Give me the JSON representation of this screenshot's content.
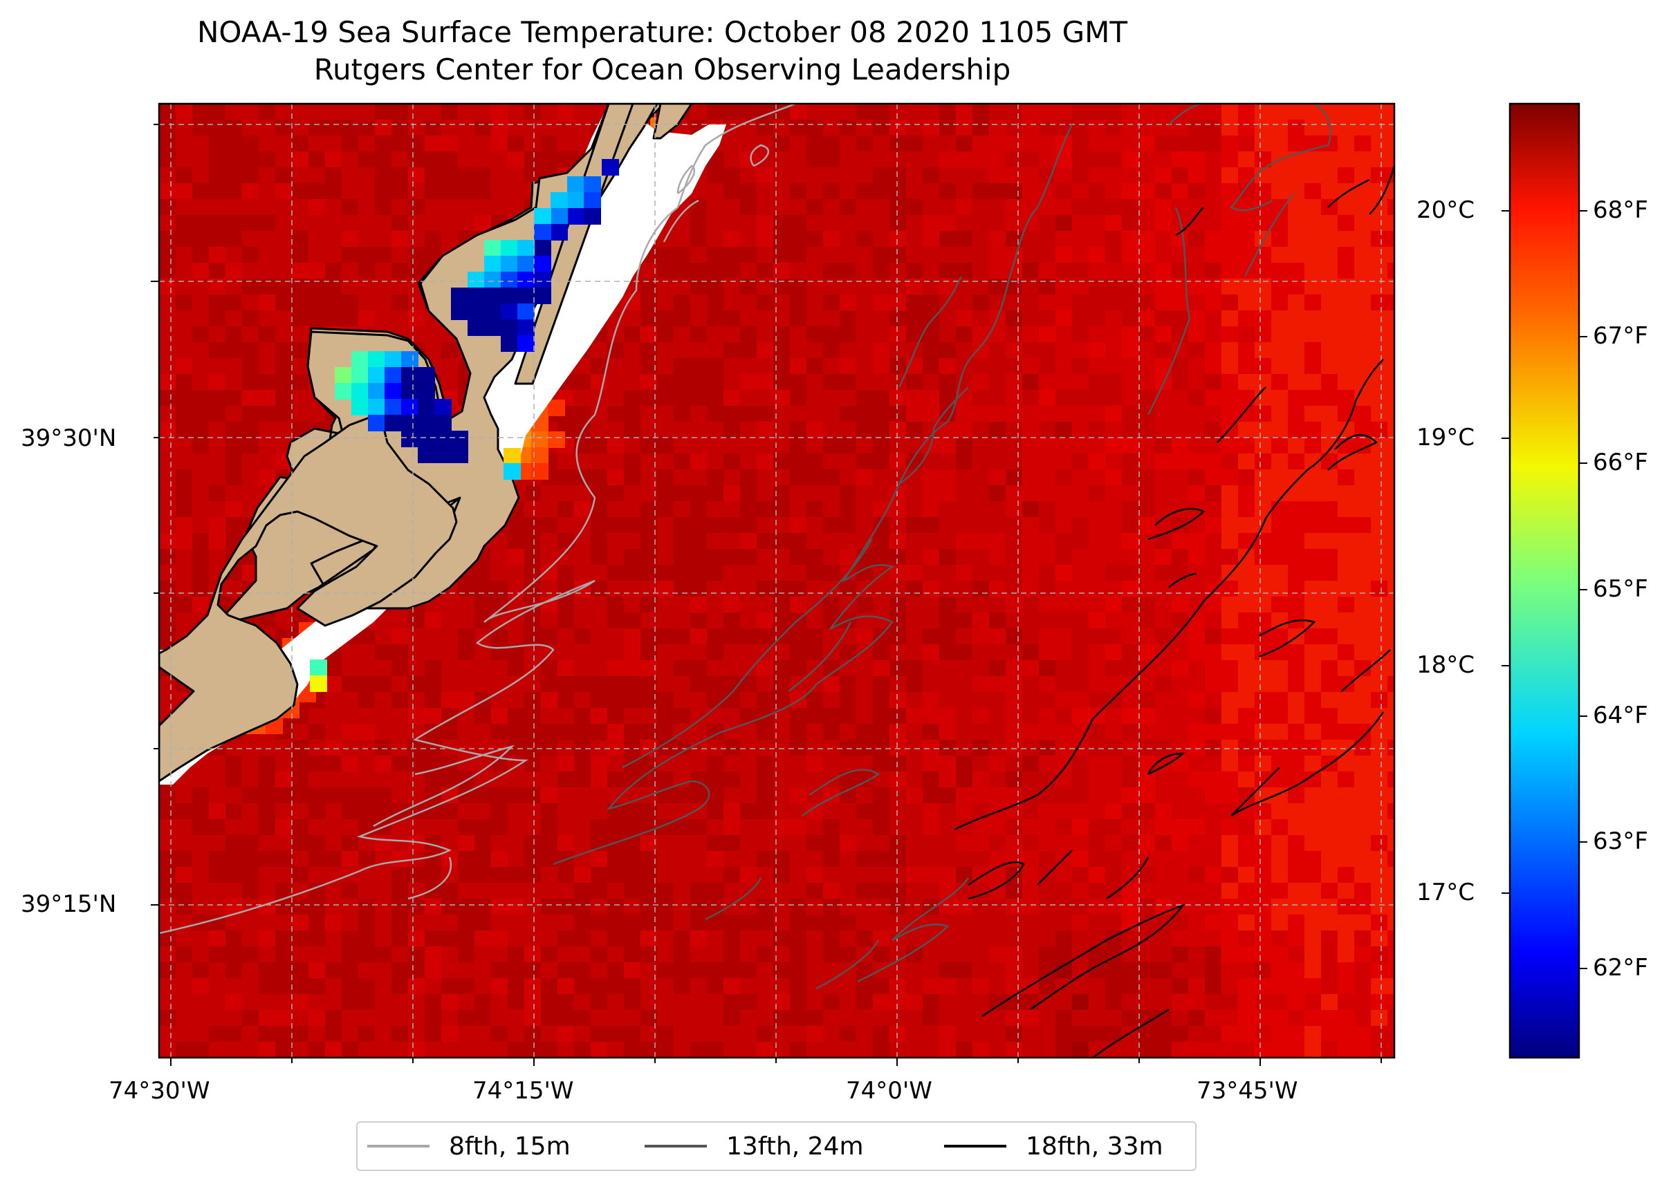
{
  "title": {
    "line1": "NOAA-19 Sea Surface Temperature: October 08 2020 1105 GMT",
    "line2": "Rutgers Center for Ocean Observing Leadership"
  },
  "axes": {
    "x_labels": [
      "74°30'W",
      "74°15'W",
      "74°0'W",
      "73°45'W"
    ],
    "y_labels": [
      "39°30'N",
      "39°15'N"
    ]
  },
  "colorbar": {
    "colormap": "jet",
    "celsius_labels": [
      "20°C",
      "19°C",
      "18°C",
      "17°C"
    ],
    "fahrenheit_labels": [
      "68°F",
      "67°F",
      "66°F",
      "65°F",
      "64°F",
      "63°F",
      "62°F"
    ]
  },
  "legend": [
    {
      "label": "8fth, 15m",
      "color": "#a9a9a9"
    },
    {
      "label": "13fth, 24m",
      "color": "#555555"
    },
    {
      "label": "18fth, 33m",
      "color": "#000000"
    }
  ],
  "colors": {
    "land": "#d2b48c",
    "coastline": "#000000",
    "gridline": "#b0b0b0",
    "sst_warm": "#d40000",
    "sst_warmest": "#a80000",
    "sst_cold": "#00008f"
  }
}
